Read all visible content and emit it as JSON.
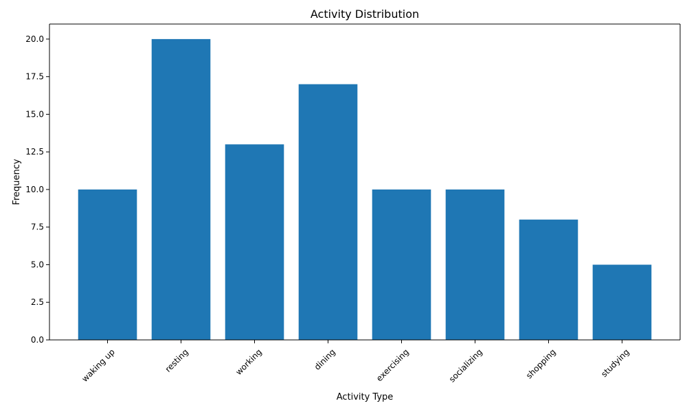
{
  "chart_data": {
    "type": "bar",
    "title": "Activity Distribution",
    "xlabel": "Activity Type",
    "ylabel": "Frequency",
    "categories": [
      "waking up",
      "resting",
      "working",
      "dining",
      "exercising",
      "socializing",
      "shopping",
      "studying"
    ],
    "values": [
      10,
      20,
      13,
      17,
      10,
      10,
      8,
      5
    ],
    "ylim": [
      0,
      21
    ],
    "yticks": [
      "0.0",
      "2.5",
      "5.0",
      "7.5",
      "10.0",
      "12.5",
      "15.0",
      "17.5",
      "20.0"
    ],
    "ytick_values": [
      0,
      2.5,
      5,
      7.5,
      10,
      12.5,
      15,
      17.5,
      20
    ],
    "grid": false,
    "legend": "none",
    "bar_color": "#1f77b4",
    "xtick_rotation_deg": 45
  }
}
